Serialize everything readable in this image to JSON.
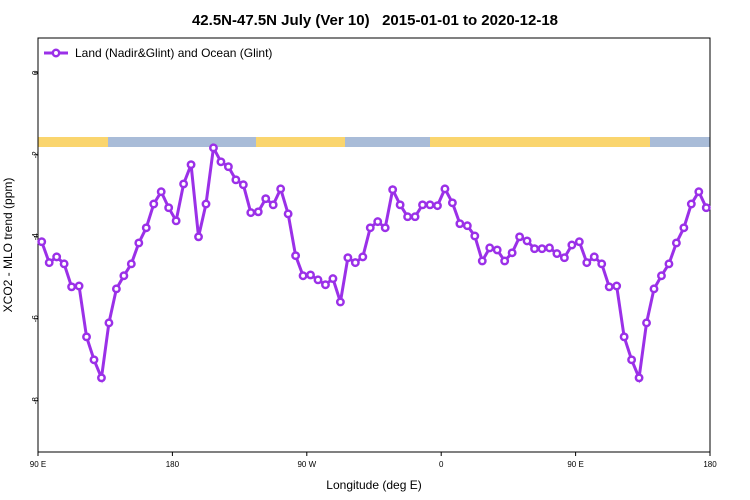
{
  "chart_data": {
    "type": "line",
    "title": "42.5N-47.5N July (Ver 10)   2015-01-01 to 2020-12-18",
    "xlabel": "Longitude (deg E)",
    "ylabel": "XCO2 - MLO trend (ppm)",
    "xlim": [
      90,
      540
    ],
    "ylim": [
      -9.25,
      0.85
    ],
    "xticks": [
      {
        "value": 90,
        "label": "90 E"
      },
      180,
      {
        "value": 270,
        "label": "90 W"
      },
      {
        "value": 360,
        "label": "0"
      },
      {
        "value": 450,
        "label": "90 E"
      },
      {
        "value": 540,
        "label": "180"
      }
    ],
    "yticks": [
      0,
      -2,
      -4,
      -6,
      -8
    ],
    "legend": "top-left",
    "x": [
      92.5,
      97.5,
      102.5,
      107.5,
      112.5,
      117.5,
      122.5,
      127.5,
      132.5,
      137.5,
      142.5,
      147.5,
      152.5,
      157.5,
      162.5,
      167.5,
      172.5,
      177.5,
      182.5,
      187.5,
      192.5,
      197.5,
      202.5,
      207.5,
      212.5,
      217.5,
      222.5,
      227.5,
      232.5,
      237.5,
      242.5,
      247.5,
      252.5,
      257.5,
      262.5,
      267.5,
      272.5,
      277.5,
      282.5,
      287.5,
      292.5,
      297.5,
      302.5,
      307.5,
      312.5,
      317.5,
      322.5,
      327.5,
      332.5,
      337.5,
      342.5,
      347.5,
      352.5,
      357.5,
      362.5,
      367.5,
      372.5,
      377.5,
      382.5,
      387.5,
      392.5,
      397.5,
      402.5,
      407.5,
      412.5,
      417.5,
      422.5,
      427.5,
      432.5,
      437.5,
      442.5,
      447.5,
      452.5,
      457.5,
      462.5,
      467.5,
      472.5,
      477.5,
      482.5,
      487.5,
      492.5,
      497.5,
      502.5,
      507.5,
      512.5,
      517.5,
      522.5,
      527.5,
      532.5,
      537.5
    ],
    "series": [
      {
        "name": "Land (Nadir&Glint) and Ocean (Glint)",
        "color": "#9b30e8",
        "values": [
          -4.12,
          -4.63,
          -4.49,
          -4.66,
          -5.22,
          -5.2,
          -6.44,
          -7.0,
          -7.44,
          -6.1,
          -5.27,
          -4.95,
          -4.66,
          -4.15,
          -3.78,
          -3.2,
          -2.9,
          -3.29,
          -3.61,
          -2.71,
          -2.24,
          -4.0,
          -3.2,
          -1.83,
          -2.17,
          -2.29,
          -2.61,
          -2.73,
          -3.41,
          -3.39,
          -3.07,
          -3.22,
          -2.83,
          -3.44,
          -4.46,
          -4.95,
          -4.93,
          -5.05,
          -5.17,
          -5.02,
          -5.59,
          -4.51,
          -4.63,
          -4.49,
          -3.78,
          -3.63,
          -3.78,
          -2.85,
          -3.22,
          -3.51,
          -3.51,
          -3.22,
          -3.22,
          -3.24,
          -2.83,
          -3.17,
          -3.68,
          -3.73,
          -3.98,
          -4.59,
          -4.27,
          -4.32,
          -4.59,
          -4.39,
          -4.0,
          -4.1,
          -4.29,
          -4.29,
          -4.27,
          -4.41,
          -4.51,
          -4.2,
          -4.12,
          -4.63,
          -4.49,
          -4.66,
          -5.22,
          -5.2,
          -6.44,
          -7.0,
          -7.44,
          -6.1,
          -5.27,
          -4.95,
          -4.66,
          -4.15,
          -3.78,
          -3.2,
          -2.9,
          -3.29
        ]
      }
    ]
  }
}
